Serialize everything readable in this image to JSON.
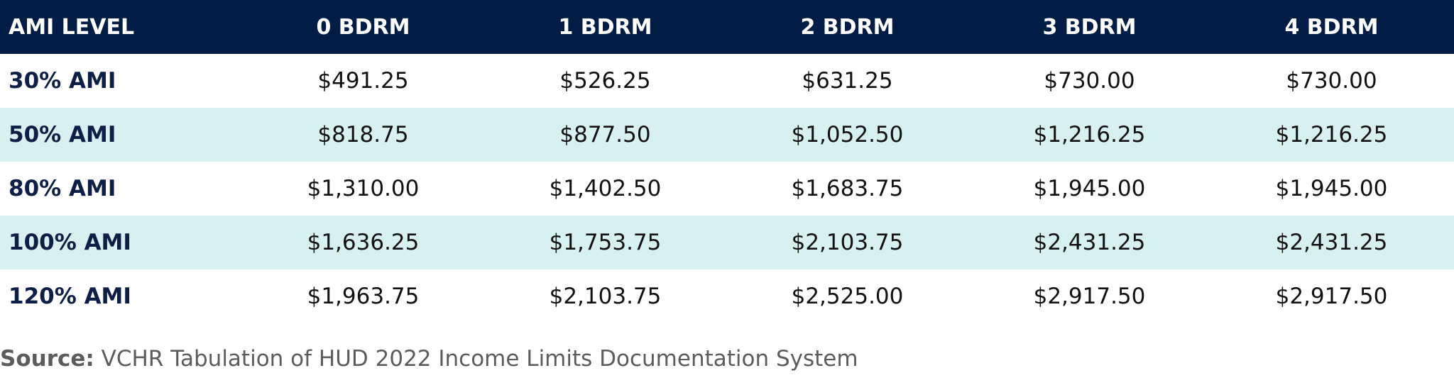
{
  "table": {
    "headers": [
      "AMI LEVEL",
      "0 BDRM",
      "1 BDRM",
      "2 BDRM",
      "3 BDRM",
      "4 BDRM"
    ],
    "rows": [
      {
        "level": "30% AMI",
        "values": [
          "$491.25",
          "$526.25",
          "$631.25",
          "$730.00",
          "$730.00"
        ]
      },
      {
        "level": "50% AMI",
        "values": [
          "$818.75",
          "$877.50",
          "$1,052.50",
          "$1,216.25",
          "$1,216.25"
        ]
      },
      {
        "level": "80% AMI",
        "values": [
          "$1,310.00",
          "$1,402.50",
          "$1,683.75",
          "$1,945.00",
          "$1,945.00"
        ]
      },
      {
        "level": "100% AMI",
        "values": [
          "$1,636.25",
          "$1,753.75",
          "$2,103.75",
          "$2,431.25",
          "$2,431.25"
        ]
      },
      {
        "level": "120% AMI",
        "values": [
          "$1,963.75",
          "$2,103.75",
          "$2,525.00",
          "$2,917.50",
          "$2,917.50"
        ]
      }
    ],
    "colors": {
      "header_bg": "#011d45",
      "header_text": "#ffffff",
      "stripe_bg": "#d6f1f0",
      "level_text": "#0d1f46"
    }
  },
  "source": {
    "label": "Source:",
    "text": " VCHR Tabulation of HUD 2022 Income Limits Documentation System"
  }
}
